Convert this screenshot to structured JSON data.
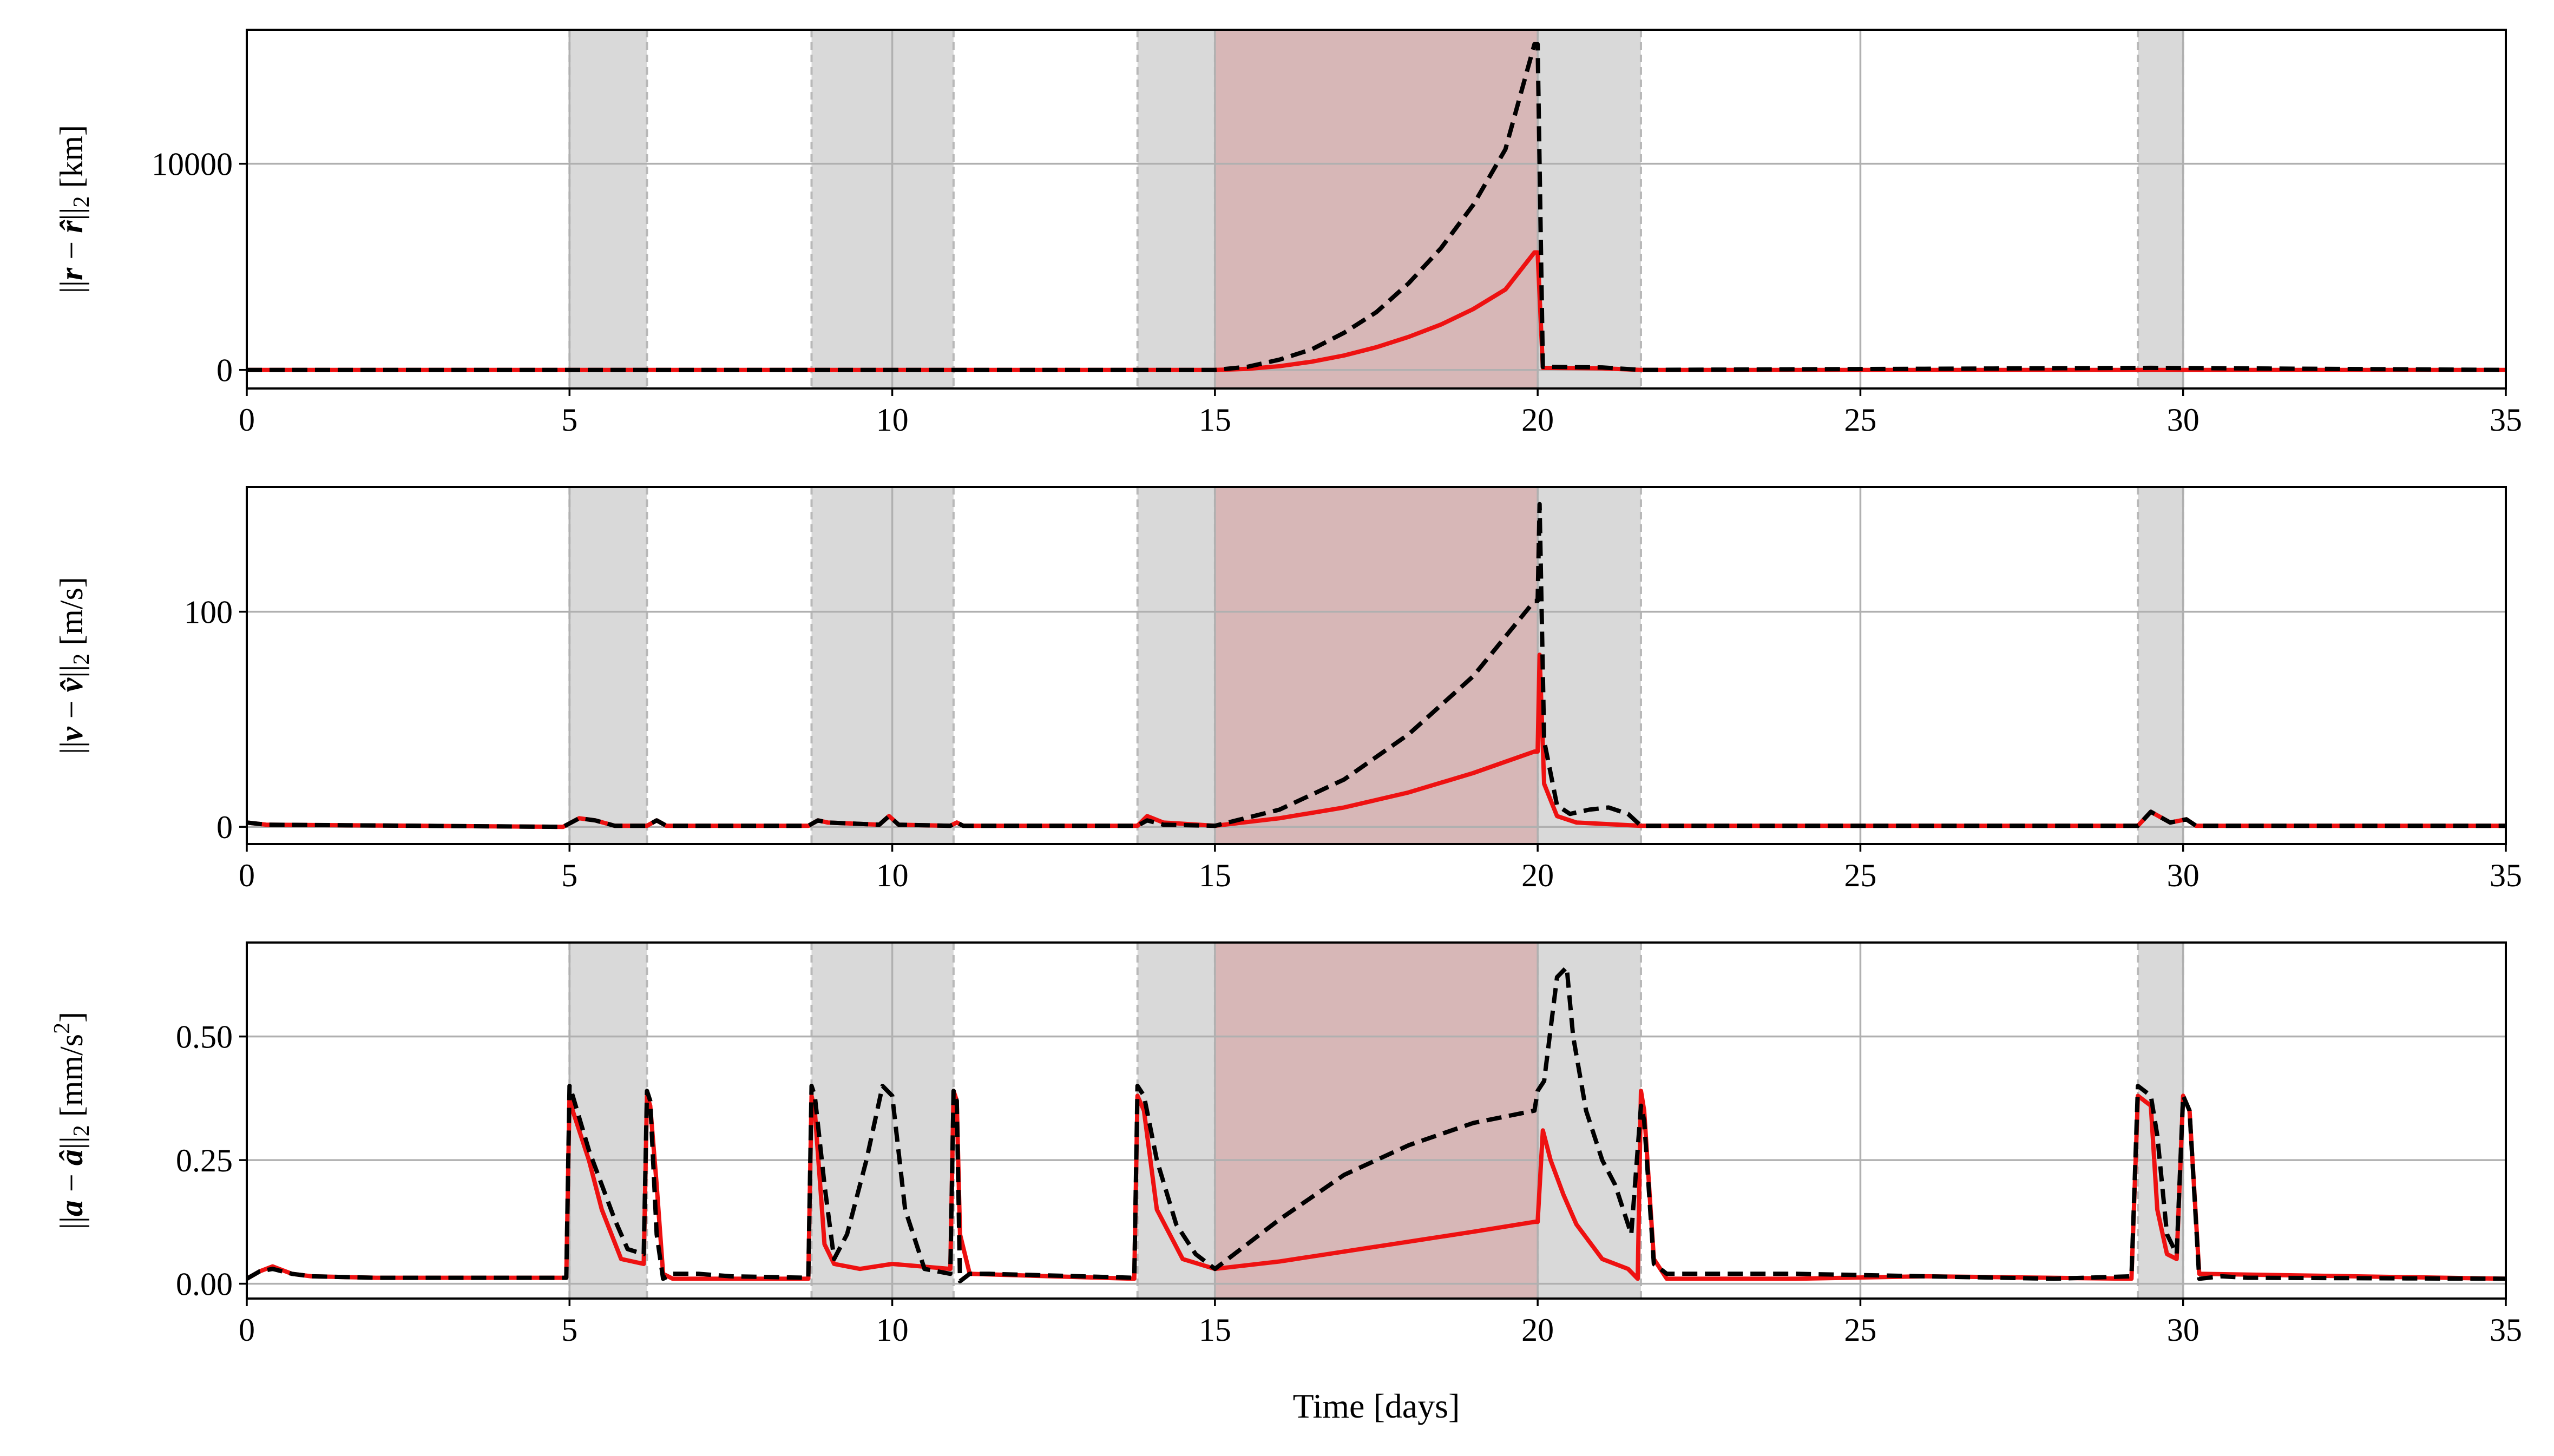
{
  "chart_data": [
    {
      "type": "line",
      "ylabel_parts": [
        "||",
        "r",
        " − ",
        "r̂",
        "||",
        "2",
        "  [km]"
      ],
      "xlabel": "",
      "xlim": [
        0,
        35
      ],
      "ylim": [
        -900,
        16500
      ],
      "xticks": [
        "0",
        "5",
        "10",
        "15",
        "20",
        "25",
        "30",
        "35"
      ],
      "xtick_values": [
        0,
        5,
        10,
        15,
        20,
        25,
        30,
        35
      ],
      "yticks": [
        "0",
        "10000"
      ],
      "ytick_values": [
        0,
        10000
      ],
      "grid": true,
      "gray_spans": [
        [
          5.0,
          6.2
        ],
        [
          8.75,
          10.95
        ],
        [
          13.8,
          15.0
        ],
        [
          20.0,
          21.6
        ],
        [
          29.3,
          30.0
        ]
      ],
      "red_span": [
        15.0,
        20.0
      ],
      "series": [
        {
          "style": "solid",
          "color": "#ee1111",
          "x": [
            0,
            14.9,
            15,
            15.5,
            16,
            16.5,
            17,
            17.5,
            18,
            18.5,
            19,
            19.5,
            19.95,
            20.0,
            20.08,
            21,
            21.6,
            29.5,
            35
          ],
          "y": [
            0,
            0,
            0,
            50,
            180,
            400,
            700,
            1100,
            1600,
            2200,
            2950,
            3900,
            5700,
            5700,
            100,
            80,
            0,
            0,
            0
          ]
        },
        {
          "style": "dashed",
          "color": "#000000",
          "x": [
            0,
            14.9,
            15,
            15.5,
            16,
            16.5,
            17,
            17.5,
            18,
            18.5,
            19,
            19.5,
            19.95,
            20.0,
            20.08,
            21,
            21.6,
            29.5,
            35
          ],
          "y": [
            0,
            0,
            0,
            150,
            500,
            1000,
            1800,
            2800,
            4200,
            5900,
            8000,
            10700,
            15800,
            15800,
            150,
            120,
            0,
            100,
            0
          ]
        }
      ]
    },
    {
      "type": "line",
      "ylabel_parts": [
        "||",
        "v",
        " − ",
        "v̂",
        "||",
        "2",
        "  [m/s]"
      ],
      "xlabel": "",
      "xlim": [
        0,
        35
      ],
      "ylim": [
        -8,
        158
      ],
      "xticks": [
        "0",
        "5",
        "10",
        "15",
        "20",
        "25",
        "30",
        "35"
      ],
      "xtick_values": [
        0,
        5,
        10,
        15,
        20,
        25,
        30,
        35
      ],
      "yticks": [
        "0",
        "100"
      ],
      "ytick_values": [
        0,
        100
      ],
      "grid": true,
      "gray_spans": [
        [
          5.0,
          6.2
        ],
        [
          8.75,
          10.95
        ],
        [
          13.8,
          15.0
        ],
        [
          20.0,
          21.6
        ],
        [
          29.3,
          30.0
        ]
      ],
      "red_span": [
        15.0,
        20.0
      ],
      "series": [
        {
          "style": "solid",
          "color": "#ee1111",
          "x": [
            0,
            0.3,
            4.9,
            5.15,
            5.4,
            5.7,
            6.2,
            6.35,
            6.5,
            8.7,
            8.85,
            9.0,
            9.8,
            9.95,
            10.1,
            10.9,
            11.0,
            11.1,
            13.8,
            13.95,
            14.2,
            15.0,
            16,
            17,
            18,
            19,
            19.95,
            20.0,
            20.03,
            20.1,
            20.3,
            20.6,
            21.6,
            29.3,
            29.5,
            29.8,
            30.05,
            30.2,
            35
          ],
          "y": [
            2,
            1,
            0,
            4,
            3,
            0.5,
            0.5,
            3,
            0.5,
            0.5,
            3,
            2,
            1,
            5,
            1,
            0.5,
            2,
            0.5,
            0.5,
            5,
            2,
            0.5,
            4,
            9,
            16,
            25,
            35,
            35,
            80,
            20,
            5,
            2,
            0.5,
            0.5,
            7,
            2,
            3.5,
            0.5,
            0.5
          ]
        },
        {
          "style": "dashed",
          "color": "#000000",
          "x": [
            0,
            0.3,
            4.9,
            5.15,
            5.4,
            5.7,
            6.2,
            6.35,
            6.5,
            8.7,
            8.85,
            9.0,
            9.8,
            9.95,
            10.1,
            10.9,
            11.0,
            11.1,
            13.8,
            13.95,
            14.2,
            15.0,
            16,
            17,
            18,
            19,
            19.95,
            20.0,
            20.03,
            20.1,
            20.3,
            20.5,
            20.8,
            21.1,
            21.4,
            21.6,
            29.3,
            29.5,
            29.8,
            30.05,
            30.2,
            35
          ],
          "y": [
            2,
            1,
            0,
            4,
            3,
            0.5,
            0.5,
            3,
            0.5,
            0.5,
            3,
            2,
            1,
            5,
            1,
            0.5,
            2,
            0.5,
            0.5,
            3,
            1,
            0.5,
            8,
            22,
            43,
            70,
            105,
            105,
            150,
            40,
            10,
            6,
            8,
            9,
            6,
            0.5,
            0.5,
            7,
            2,
            3.5,
            0.5,
            0.5
          ]
        }
      ]
    },
    {
      "type": "line",
      "ylabel_parts": [
        "||",
        "a",
        " − ",
        "â",
        "||",
        "2",
        "  [mm/s",
        "2",
        "]"
      ],
      "xlabel": "Time [days]",
      "xlim": [
        0,
        35
      ],
      "ylim": [
        -0.03,
        0.69
      ],
      "xticks": [
        "0",
        "5",
        "10",
        "15",
        "20",
        "25",
        "30",
        "35"
      ],
      "xtick_values": [
        0,
        5,
        10,
        15,
        20,
        25,
        30,
        35
      ],
      "yticks": [
        "0.00",
        "0.25",
        "0.50"
      ],
      "ytick_values": [
        0,
        0.25,
        0.5
      ],
      "grid": true,
      "gray_spans": [
        [
          5.0,
          6.2
        ],
        [
          8.75,
          10.95
        ],
        [
          13.8,
          15.0
        ],
        [
          20.0,
          21.6
        ],
        [
          29.3,
          30.0
        ]
      ],
      "red_span": [
        15.0,
        20.0
      ],
      "series": [
        {
          "style": "solid",
          "color": "#ee1111",
          "x": [
            0,
            0.2,
            0.4,
            0.7,
            1.0,
            2,
            4.95,
            5.0,
            5.05,
            5.3,
            5.5,
            5.8,
            6.15,
            6.2,
            6.25,
            6.35,
            6.45,
            6.6,
            8.7,
            8.75,
            8.8,
            8.95,
            9.1,
            9.5,
            10,
            10.9,
            10.95,
            11.0,
            11.05,
            11.2,
            13.75,
            13.8,
            13.9,
            14.1,
            14.5,
            15,
            16,
            17,
            18,
            19,
            19.95,
            20.0,
            20.08,
            20.2,
            20.4,
            20.6,
            21.0,
            21.4,
            21.55,
            21.6,
            21.65,
            21.8,
            22.0,
            24,
            26,
            29.2,
            29.3,
            29.5,
            29.6,
            29.75,
            29.9,
            30.0,
            30.1,
            30.25,
            35
          ],
          "y": [
            0.01,
            0.025,
            0.035,
            0.02,
            0.015,
            0.012,
            0.012,
            0.38,
            0.35,
            0.25,
            0.15,
            0.05,
            0.04,
            0.38,
            0.36,
            0.2,
            0.02,
            0.01,
            0.01,
            0.38,
            0.35,
            0.08,
            0.04,
            0.03,
            0.04,
            0.03,
            0.39,
            0.37,
            0.1,
            0.02,
            0.01,
            0.38,
            0.35,
            0.15,
            0.05,
            0.03,
            0.045,
            0.065,
            0.085,
            0.105,
            0.125,
            0.125,
            0.31,
            0.25,
            0.18,
            0.12,
            0.05,
            0.03,
            0.01,
            0.39,
            0.35,
            0.05,
            0.01,
            0.01,
            0.015,
            0.01,
            0.38,
            0.36,
            0.15,
            0.06,
            0.05,
            0.38,
            0.35,
            0.02,
            0.01
          ]
        },
        {
          "style": "dashed",
          "color": "#000000",
          "x": [
            0,
            0.2,
            0.4,
            0.7,
            1.0,
            2,
            4.95,
            5.0,
            5.05,
            5.3,
            5.5,
            5.7,
            5.9,
            6.15,
            6.2,
            6.25,
            6.35,
            6.45,
            6.6,
            7,
            7.5,
            8.7,
            8.75,
            8.8,
            8.95,
            9.1,
            9.3,
            9.6,
            9.85,
            10.0,
            10.2,
            10.5,
            10.9,
            10.95,
            11.0,
            11.05,
            11.2,
            11.5,
            13.75,
            13.8,
            13.9,
            14.1,
            14.4,
            14.7,
            15,
            16,
            17,
            18,
            19,
            19.95,
            20.0,
            20.1,
            20.3,
            20.45,
            20.55,
            20.75,
            21.0,
            21.2,
            21.45,
            21.6,
            21.65,
            21.8,
            22.0,
            22.5,
            24,
            26,
            28,
            29.2,
            29.3,
            29.5,
            29.6,
            29.75,
            29.9,
            30.0,
            30.1,
            30.25,
            30.6,
            31,
            35
          ],
          "y": [
            0.01,
            0.025,
            0.03,
            0.02,
            0.015,
            0.012,
            0.012,
            0.4,
            0.38,
            0.27,
            0.2,
            0.13,
            0.07,
            0.06,
            0.39,
            0.37,
            0.1,
            0.01,
            0.02,
            0.02,
            0.015,
            0.012,
            0.4,
            0.38,
            0.2,
            0.05,
            0.1,
            0.25,
            0.4,
            0.38,
            0.15,
            0.03,
            0.02,
            0.39,
            0.37,
            0.005,
            0.02,
            0.02,
            0.012,
            0.4,
            0.38,
            0.25,
            0.12,
            0.06,
            0.03,
            0.13,
            0.22,
            0.28,
            0.325,
            0.35,
            0.39,
            0.41,
            0.62,
            0.64,
            0.5,
            0.35,
            0.25,
            0.2,
            0.1,
            0.36,
            0.33,
            0.04,
            0.02,
            0.02,
            0.02,
            0.015,
            0.01,
            0.015,
            0.4,
            0.38,
            0.3,
            0.1,
            0.06,
            0.38,
            0.35,
            0.01,
            0.015,
            0.012,
            0.01
          ]
        }
      ]
    }
  ],
  "colors": {
    "gray_span": "#d9d9d9",
    "red_span": "#d7b7b7",
    "grid": "#b0b0b0",
    "red_series": "#ee1111",
    "dashed_series": "#000000"
  }
}
